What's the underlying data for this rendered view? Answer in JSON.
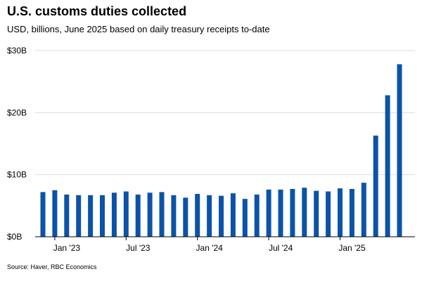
{
  "header": {
    "title": "U.S. customs duties collected",
    "subtitle": "USD, billions, June 2025 based on daily treasury receipts to-date"
  },
  "footer": {
    "source": "Source: Haver, RBC Economics"
  },
  "colors": {
    "bar": "#0b53a8",
    "grid": "#dddddd",
    "axis": "#000000"
  },
  "chart_data": {
    "type": "bar",
    "title": "U.S. customs duties collected",
    "subtitle": "USD, billions, June 2025 based on daily treasury receipts to-date",
    "xlabel": "",
    "ylabel": "",
    "ylim": [
      0,
      30
    ],
    "grid": true,
    "yticks": [
      {
        "value": 0,
        "label": "$0B"
      },
      {
        "value": 10,
        "label": "$10B"
      },
      {
        "value": 20,
        "label": "$20B"
      },
      {
        "value": 30,
        "label": "$30B"
      }
    ],
    "xticks": [
      {
        "category": "2023-01",
        "label": "Jan '23"
      },
      {
        "category": "2023-07",
        "label": "Jul '23"
      },
      {
        "category": "2024-01",
        "label": "Jan '24"
      },
      {
        "category": "2024-07",
        "label": "Jul '24"
      },
      {
        "category": "2025-01",
        "label": "Jan '25"
      }
    ],
    "categories": [
      "2022-12",
      "2023-01",
      "2023-02",
      "2023-03",
      "2023-04",
      "2023-05",
      "2023-06",
      "2023-07",
      "2023-08",
      "2023-09",
      "2023-10",
      "2023-11",
      "2023-12",
      "2024-01",
      "2024-02",
      "2024-03",
      "2024-04",
      "2024-05",
      "2024-06",
      "2024-07",
      "2024-08",
      "2024-09",
      "2024-10",
      "2024-11",
      "2024-12",
      "2025-01",
      "2025-02",
      "2025-03",
      "2025-04",
      "2025-05",
      "2025-06"
    ],
    "values": [
      7.2,
      7.5,
      6.8,
      6.7,
      6.7,
      6.7,
      7.1,
      7.3,
      6.8,
      7.1,
      7.2,
      6.7,
      6.3,
      6.9,
      6.7,
      6.6,
      7.0,
      6.1,
      6.8,
      7.6,
      7.6,
      7.7,
      7.9,
      7.4,
      7.3,
      7.8,
      7.7,
      8.7,
      16.3,
      22.8,
      27.8
    ]
  }
}
